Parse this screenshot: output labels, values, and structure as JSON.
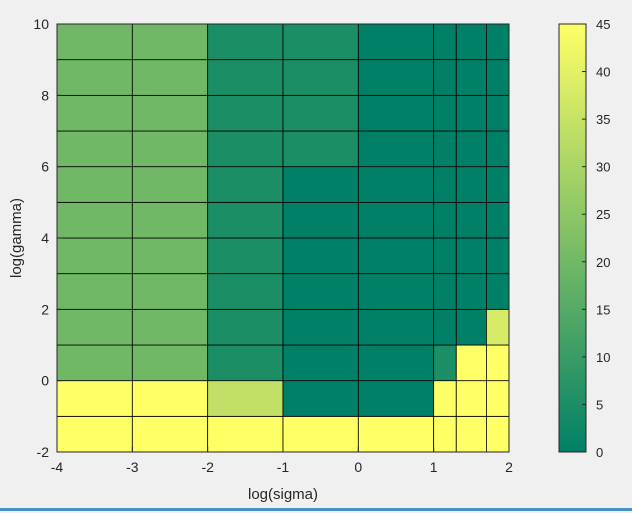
{
  "chart_data": {
    "type": "heatmap",
    "title": "",
    "xlabel": "log(sigma)",
    "ylabel": "log(gamma)",
    "xlim": [
      -4,
      2
    ],
    "ylim": [
      -2,
      10
    ],
    "x_ticks": [
      -4,
      -3,
      -2,
      -1,
      0,
      1,
      2
    ],
    "y_ticks": [
      -2,
      0,
      2,
      4,
      6,
      8,
      10
    ],
    "x_edges": [
      -4,
      -3,
      -2,
      -1,
      0,
      1,
      1.3,
      1.7,
      2
    ],
    "y_edges": [
      -2,
      -1,
      0,
      1,
      2,
      3,
      4,
      5,
      6,
      7,
      8,
      9,
      10
    ],
    "values": [
      [
        45,
        45,
        45,
        45,
        45,
        45,
        45,
        45
      ],
      [
        45,
        45,
        34,
        0,
        0,
        45,
        45,
        45
      ],
      [
        20,
        20,
        5,
        0,
        0,
        5,
        45,
        45
      ],
      [
        20,
        20,
        5,
        0,
        0,
        0,
        0,
        38
      ],
      [
        20,
        20,
        5,
        0,
        0,
        0,
        0,
        0
      ],
      [
        20,
        20,
        5,
        0,
        0,
        0,
        0,
        0
      ],
      [
        20,
        20,
        5,
        0,
        0,
        0,
        0,
        0
      ],
      [
        20,
        20,
        5,
        0,
        0,
        0,
        0,
        0
      ],
      [
        20,
        20,
        5,
        5,
        0,
        0,
        0,
        0
      ],
      [
        20,
        20,
        5,
        5,
        0,
        0,
        0,
        0
      ],
      [
        20,
        20,
        5,
        5,
        0,
        0,
        0,
        0
      ],
      [
        20,
        20,
        5,
        5,
        0,
        0,
        0,
        0
      ]
    ],
    "colorbar": {
      "range": [
        0,
        45
      ],
      "ticks": [
        0,
        5,
        10,
        15,
        20,
        25,
        30,
        35,
        40,
        45
      ],
      "colormap_start": "#008066",
      "colormap_end": "#ffff66"
    },
    "grid": true,
    "legend": "none"
  },
  "colors": {
    "figure_background": "#f0f0f0",
    "cell_edge": "#000000",
    "axis": "#262626",
    "bottom_strip": "#4a90c8"
  }
}
